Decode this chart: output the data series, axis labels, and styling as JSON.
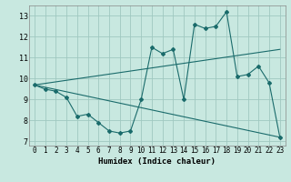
{
  "xlabel": "Humidex (Indice chaleur)",
  "xlim": [
    -0.5,
    23.5
  ],
  "ylim": [
    6.8,
    13.5
  ],
  "yticks": [
    7,
    8,
    9,
    10,
    11,
    12,
    13
  ],
  "xticks": [
    0,
    1,
    2,
    3,
    4,
    5,
    6,
    7,
    8,
    9,
    10,
    11,
    12,
    13,
    14,
    15,
    16,
    17,
    18,
    19,
    20,
    21,
    22,
    23
  ],
  "bg_color": "#c8e8e0",
  "grid_color": "#a0c8c0",
  "line_color": "#1a6b6b",
  "series1_x": [
    0,
    1,
    2,
    3,
    4,
    5,
    6,
    7,
    8,
    9,
    10,
    11,
    12,
    13,
    14,
    15,
    16,
    17,
    18,
    19,
    20,
    21,
    22,
    23
  ],
  "series1_y": [
    9.7,
    9.5,
    9.4,
    9.1,
    8.2,
    8.3,
    7.9,
    7.5,
    7.4,
    7.5,
    9.0,
    11.5,
    11.2,
    11.4,
    9.0,
    12.6,
    12.4,
    12.5,
    13.2,
    10.1,
    10.2,
    10.6,
    9.8,
    7.2
  ],
  "trend1_x": [
    0,
    23
  ],
  "trend1_y": [
    9.7,
    11.4
  ],
  "trend2_x": [
    0,
    23
  ],
  "trend2_y": [
    9.7,
    7.2
  ]
}
